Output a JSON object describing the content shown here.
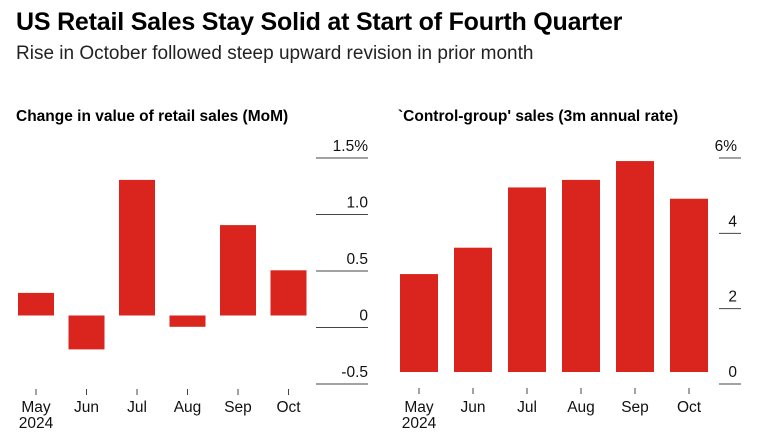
{
  "header": {
    "title": "US Retail Sales Stay Solid at Start of Fourth Quarter",
    "subtitle": "Rise in October followed steep upward revision in prior month"
  },
  "colors": {
    "bar": "#d9251d",
    "axis": "#444444"
  },
  "chart_data": [
    {
      "type": "bar",
      "title": "Change in value of retail sales (MoM)",
      "categories": [
        "May",
        "Jun",
        "Jul",
        "Aug",
        "Sep",
        "Oct"
      ],
      "year_label": "2024",
      "values": [
        0.2,
        -0.3,
        1.2,
        -0.1,
        0.8,
        0.4
      ],
      "ylim": [
        -0.5,
        1.5
      ],
      "ticks": [
        {
          "value": 1.5,
          "label": "1.5%"
        },
        {
          "value": 1.0,
          "label": "1.0"
        },
        {
          "value": 0.5,
          "label": "0.5"
        },
        {
          "value": 0.0,
          "label": "0"
        },
        {
          "value": -0.5,
          "label": "-0.5"
        }
      ],
      "xlabel": "",
      "ylabel": ""
    },
    {
      "type": "bar",
      "title": "`Control-group' sales (3m annual rate)",
      "categories": [
        "May",
        "Jun",
        "Jul",
        "Aug",
        "Sep",
        "Oct"
      ],
      "year_label": "2024",
      "values": [
        2.6,
        3.3,
        4.9,
        5.1,
        5.6,
        4.6
      ],
      "ylim": [
        0,
        6
      ],
      "ticks": [
        {
          "value": 6,
          "label": "6%"
        },
        {
          "value": 4,
          "label": "4"
        },
        {
          "value": 2,
          "label": "2"
        },
        {
          "value": 0,
          "label": "0"
        }
      ],
      "xlabel": "",
      "ylabel": ""
    }
  ]
}
